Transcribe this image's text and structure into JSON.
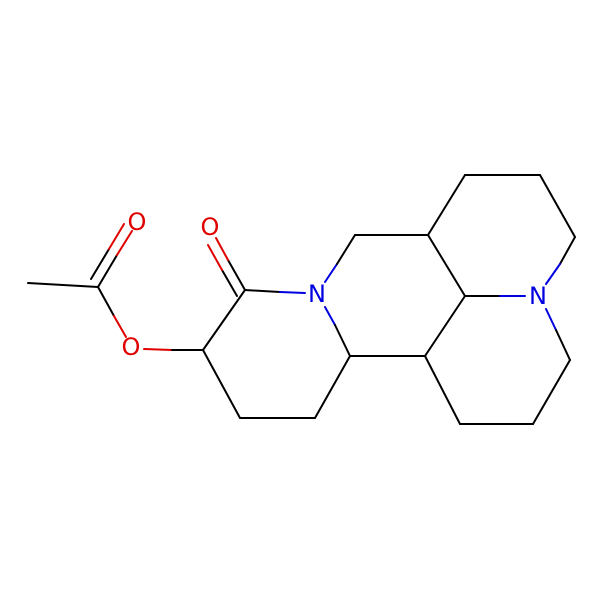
{
  "atoms": [
    {
      "label": "O"
    },
    {
      "label": "O"
    },
    {
      "label": "O"
    },
    {
      "label": "N"
    },
    {
      "label": "N"
    }
  ]
}
